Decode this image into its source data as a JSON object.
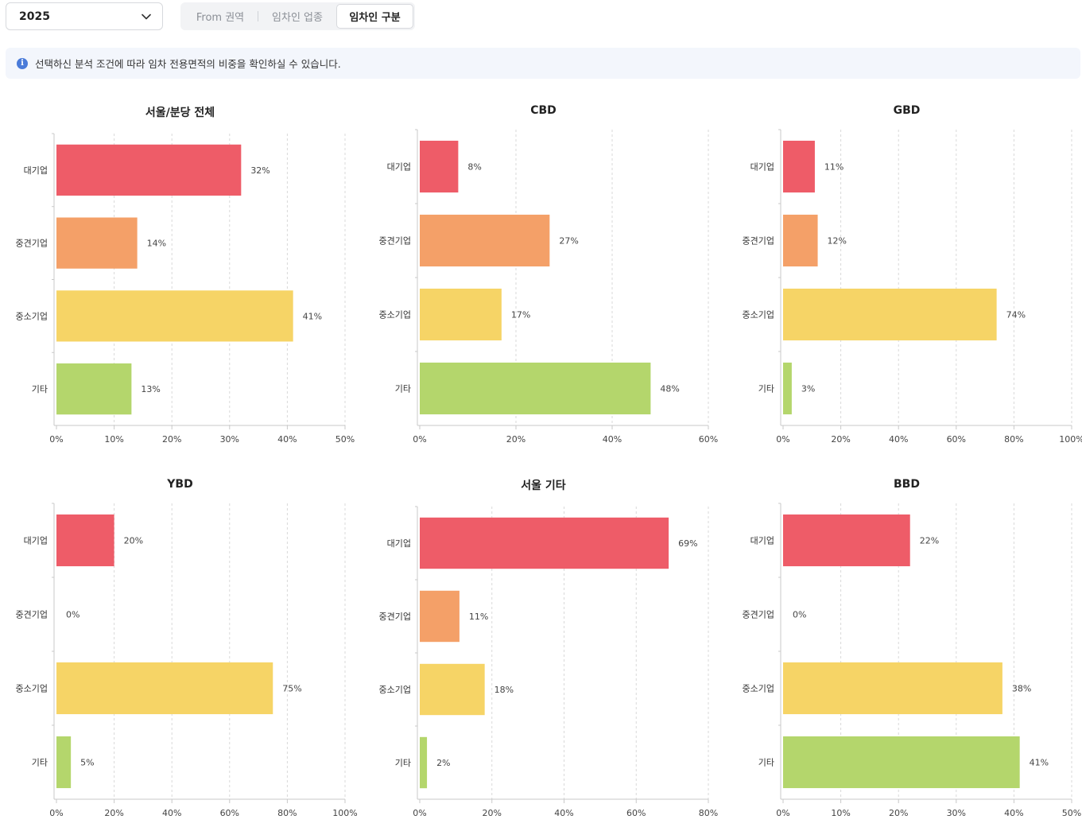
{
  "filters": {
    "year": "2025",
    "tabs": [
      {
        "label": "From 권역",
        "active": false
      },
      {
        "label": "임차인 업종",
        "active": false
      },
      {
        "label": "임차인 구분",
        "active": true
      }
    ]
  },
  "info": {
    "icon": "info-icon",
    "text": "선택하신 분석 조건에 따라 임차 전용면적의 비중을 확인하실 수 있습니다."
  },
  "colors": {
    "대기업": "#ee5c68",
    "중견기업": "#f4a068",
    "중소기업": "#f6d466",
    "기타": "#b4d66c"
  },
  "chart_data": [
    {
      "type": "bar",
      "orientation": "horizontal",
      "title": "서울/분당 전체",
      "categories": [
        "대기업",
        "중견기업",
        "중소기업",
        "기타"
      ],
      "values": [
        32,
        14,
        41,
        13
      ],
      "value_labels": [
        "32%",
        "14%",
        "41%",
        "13%"
      ],
      "xlim": [
        0,
        50
      ],
      "xticks": [
        0,
        10,
        20,
        30,
        40,
        50
      ],
      "xtick_labels": [
        "0%",
        "10%",
        "20%",
        "30%",
        "40%",
        "50%"
      ],
      "grid": "vertical-dashed"
    },
    {
      "type": "bar",
      "orientation": "horizontal",
      "title": "CBD",
      "categories": [
        "대기업",
        "중견기업",
        "중소기업",
        "기타"
      ],
      "values": [
        8,
        27,
        17,
        48
      ],
      "value_labels": [
        "8%",
        "27%",
        "17%",
        "48%"
      ],
      "xlim": [
        0,
        60
      ],
      "xticks": [
        0,
        20,
        40,
        60
      ],
      "xtick_labels": [
        "0%",
        "20%",
        "40%",
        "60%"
      ],
      "grid": "vertical-dashed"
    },
    {
      "type": "bar",
      "orientation": "horizontal",
      "title": "GBD",
      "categories": [
        "대기업",
        "중견기업",
        "중소기업",
        "기타"
      ],
      "values": [
        11,
        12,
        74,
        3
      ],
      "value_labels": [
        "11%",
        "12%",
        "74%",
        "3%"
      ],
      "xlim": [
        0,
        100
      ],
      "xticks": [
        0,
        20,
        40,
        60,
        80,
        100
      ],
      "xtick_labels": [
        "0%",
        "20%",
        "40%",
        "60%",
        "80%",
        "100%"
      ],
      "grid": "vertical-dashed"
    },
    {
      "type": "bar",
      "orientation": "horizontal",
      "title": "YBD",
      "categories": [
        "대기업",
        "중견기업",
        "중소기업",
        "기타"
      ],
      "values": [
        20,
        0,
        75,
        5
      ],
      "value_labels": [
        "20%",
        "0%",
        "75%",
        "5%"
      ],
      "xlim": [
        0,
        100
      ],
      "xticks": [
        0,
        20,
        40,
        60,
        80,
        100
      ],
      "xtick_labels": [
        "0%",
        "20%",
        "40%",
        "60%",
        "80%",
        "100%"
      ],
      "grid": "vertical-dashed"
    },
    {
      "type": "bar",
      "orientation": "horizontal",
      "title": "서울 기타",
      "categories": [
        "대기업",
        "중견기업",
        "중소기업",
        "기타"
      ],
      "values": [
        69,
        11,
        18,
        2
      ],
      "value_labels": [
        "69%",
        "11%",
        "18%",
        "2%"
      ],
      "xlim": [
        0,
        80
      ],
      "xticks": [
        0,
        20,
        40,
        60,
        80
      ],
      "xtick_labels": [
        "0%",
        "20%",
        "40%",
        "60%",
        "80%"
      ],
      "grid": "vertical-dashed"
    },
    {
      "type": "bar",
      "orientation": "horizontal",
      "title": "BBD",
      "categories": [
        "대기업",
        "중견기업",
        "중소기업",
        "기타"
      ],
      "values": [
        22,
        0,
        38,
        41
      ],
      "value_labels": [
        "22%",
        "0%",
        "38%",
        "41%"
      ],
      "xlim": [
        0,
        50
      ],
      "xticks": [
        0,
        10,
        20,
        30,
        40,
        50
      ],
      "xtick_labels": [
        "0%",
        "10%",
        "20%",
        "30%",
        "40%",
        "50%"
      ],
      "grid": "vertical-dashed"
    }
  ]
}
